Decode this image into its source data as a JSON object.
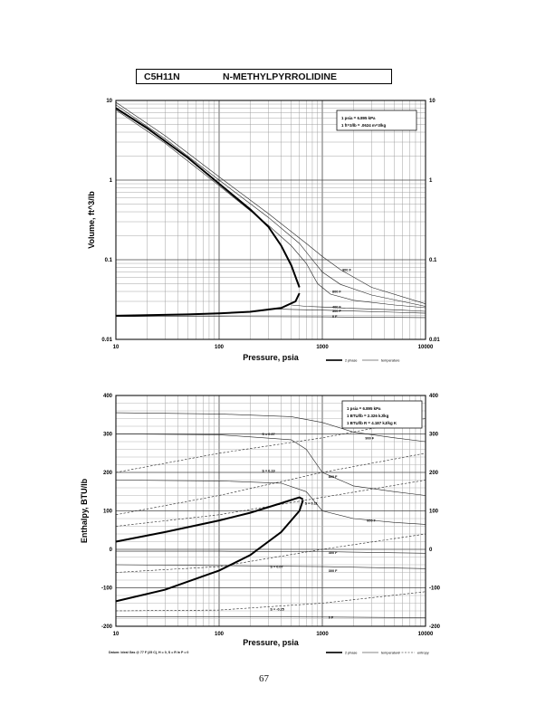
{
  "header": {
    "formula": "C5H11N",
    "name": "N-METHYLPYRROLIDINE"
  },
  "page_number": "67",
  "datum_note": "Datum: Ideal Gas @ 77 F (25 C), H = 0, S = R ln P = 0",
  "chart_data": [
    {
      "type": "line",
      "scale": {
        "x": "log",
        "y": "log"
      },
      "xlabel": "Pressure,  psia",
      "ylabel": "Volume, ft^3/lb",
      "xlim": [
        10,
        10000
      ],
      "ylim": [
        0.01,
        10
      ],
      "x_ticks": [
        "10",
        "100",
        "1000",
        "10000"
      ],
      "y_ticks": [
        "10",
        "1",
        "0.1",
        "0.01"
      ],
      "y_ticks_right": [
        "10",
        "1",
        "0.1",
        "0.01"
      ],
      "conversion_box": [
        "1 psia = 6.895 kPa",
        "1 ft^3/lb = .0624 m^3/kg"
      ],
      "legend": [
        {
          "label": "2 phase",
          "style": "thick"
        },
        {
          "label": "temperature",
          "style": "thin"
        }
      ],
      "two_phase": {
        "liquid": {
          "x": [
            10,
            20,
            50,
            100,
            200,
            400,
            550,
            600
          ],
          "y": [
            0.0198,
            0.0201,
            0.0206,
            0.0212,
            0.0222,
            0.0248,
            0.03,
            0.038
          ]
        },
        "vapor": {
          "x": [
            10,
            20,
            50,
            100,
            200,
            300,
            400,
            500,
            600
          ],
          "y": [
            8,
            4.5,
            1.9,
            0.9,
            0.43,
            0.26,
            0.15,
            0.085,
            0.045
          ]
        }
      },
      "series": [
        {
          "name": "900 F",
          "x": [
            10,
            30,
            100,
            300,
            700,
            1000,
            1500,
            3000,
            10000
          ],
          "y": [
            9.5,
            3.6,
            1.1,
            0.38,
            0.16,
            0.11,
            0.075,
            0.045,
            0.028
          ]
        },
        {
          "name": "800 F",
          "x": [
            10,
            30,
            100,
            300,
            600,
            800,
            1000,
            1500,
            3000,
            10000
          ],
          "y": [
            8.8,
            3.3,
            1.0,
            0.34,
            0.16,
            0.1,
            0.07,
            0.049,
            0.036,
            0.026
          ]
        },
        {
          "name": "600 F",
          "x": [
            10,
            30,
            100,
            300,
            500,
            700,
            900,
            1200,
            2000,
            5000,
            10000
          ],
          "y": [
            7.6,
            2.9,
            0.85,
            0.27,
            0.15,
            0.09,
            0.05,
            0.037,
            0.031,
            0.027,
            0.025
          ]
        },
        {
          "name": "400 F",
          "x": [
            500,
            700,
            1000,
            2000,
            5000,
            10000
          ],
          "y": [
            0.027,
            0.026,
            0.0255,
            0.0245,
            0.0235,
            0.0225
          ]
        },
        {
          "name": "300 F",
          "x": [
            300,
            500,
            1000,
            2000,
            5000,
            10000
          ],
          "y": [
            0.0242,
            0.0238,
            0.0233,
            0.0227,
            0.0219,
            0.0213
          ]
        },
        {
          "name": "0 F",
          "x": [
            10,
            100,
            1000,
            10000
          ],
          "y": [
            0.0194,
            0.0194,
            0.0192,
            0.0188
          ]
        }
      ],
      "annotations": [
        {
          "text": "900 F",
          "x": 1500,
          "y": 0.075
        },
        {
          "text": "800 F",
          "x": 1200,
          "y": 0.04
        },
        {
          "text": "400 F",
          "x": 1200,
          "y": 0.0255
        },
        {
          "text": "300 F",
          "x": 1200,
          "y": 0.0227
        },
        {
          "text": "0 F",
          "x": 1200,
          "y": 0.0195
        }
      ]
    },
    {
      "type": "line",
      "scale": {
        "x": "log",
        "y": "linear"
      },
      "xlabel": "Pressure,  psia",
      "ylabel": "Enthalpy, BTU/lb",
      "xlim": [
        10,
        10000
      ],
      "ylim": [
        -200,
        400
      ],
      "x_ticks": [
        "10",
        "100",
        "1000",
        "10000"
      ],
      "y_ticks": [
        "400",
        "300",
        "200",
        "100",
        "0",
        "-100",
        "-200"
      ],
      "y_ticks_right": [
        "400",
        "300",
        "200",
        "100",
        "0",
        "-100",
        "-200"
      ],
      "conversion_box": [
        "1 psia = 6.895 kPa",
        "1 BTU/lb = 2.326 kJ/kg",
        "1 BTU/lb R = 4.187 kJ/kg K"
      ],
      "legend": [
        {
          "label": "2 phase",
          "style": "thick"
        },
        {
          "label": "temperature",
          "style": "thin"
        },
        {
          "label": "entropy",
          "style": "dashed"
        }
      ],
      "two_phase": {
        "liquid": {
          "x": [
            10,
            30,
            100,
            200,
            400,
            600,
            650
          ],
          "y": [
            -135,
            -105,
            -55,
            -15,
            45,
            100,
            128
          ]
        },
        "vapor": {
          "x": [
            10,
            30,
            100,
            200,
            400,
            600,
            650
          ],
          "y": [
            20,
            45,
            75,
            95,
            120,
            135,
            130
          ]
        }
      },
      "series": [
        {
          "name": "900 F",
          "x": [
            10,
            100,
            500,
            1000,
            2000,
            5000,
            10000
          ],
          "y": [
            355,
            352,
            345,
            330,
            305,
            290,
            280
          ]
        },
        {
          "name": "800 F",
          "x": [
            10,
            100,
            500,
            700,
            1000,
            2000,
            5000,
            10000
          ],
          "y": [
            300,
            298,
            285,
            260,
            200,
            165,
            150,
            140
          ]
        },
        {
          "name": "600 F",
          "x": [
            10,
            100,
            400,
            700,
            1000,
            2000,
            5000,
            10000
          ],
          "y": [
            180,
            178,
            172,
            150,
            100,
            80,
            70,
            65
          ]
        },
        {
          "name": "400 F",
          "x": [
            10,
            100,
            1000,
            10000
          ],
          "y": [
            -5,
            -5,
            -6,
            -10
          ]
        },
        {
          "name": "300 F",
          "x": [
            10,
            100,
            1000,
            10000
          ],
          "y": [
            -40,
            -42,
            -45,
            -50
          ]
        },
        {
          "name": "0 F",
          "x": [
            10,
            100,
            1000,
            10000
          ],
          "y": [
            -175,
            -175,
            -176,
            -178
          ]
        },
        {
          "name": "S = 0.37",
          "x": [
            10,
            100,
            1000,
            10000
          ],
          "y": [
            200,
            250,
            290,
            340
          ]
        },
        {
          "name": "S = 0.19",
          "x": [
            10,
            100,
            1000,
            10000
          ],
          "y": [
            90,
            140,
            200,
            250
          ]
        },
        {
          "name": "S = 0.11",
          "x": [
            10,
            100,
            1000,
            10000
          ],
          "y": [
            60,
            90,
            135,
            180
          ]
        },
        {
          "name": "S = 0.07",
          "x": [
            10,
            100,
            1000,
            10000
          ],
          "y": [
            -60,
            -45,
            0,
            40
          ]
        },
        {
          "name": "S = -0.25",
          "x": [
            10,
            100,
            1000,
            10000
          ],
          "y": [
            -160,
            -158,
            -140,
            -110
          ]
        }
      ],
      "annotations": [
        {
          "text": "900 F",
          "x": 2500,
          "y": 290
        },
        {
          "text": "800 F",
          "x": 1100,
          "y": 190
        },
        {
          "text": "600 F",
          "x": 2600,
          "y": 75
        },
        {
          "text": "400 F",
          "x": 1100,
          "y": -8
        },
        {
          "text": "300 F",
          "x": 1100,
          "y": -55
        },
        {
          "text": "0 F",
          "x": 1100,
          "y": -176
        },
        {
          "text": "S = 0.37",
          "x": 250,
          "y": 300
        },
        {
          "text": "S = 0.19",
          "x": 250,
          "y": 205
        },
        {
          "text": "S = 0.11",
          "x": 650,
          "y": 120
        },
        {
          "text": "S = 0.07",
          "x": 300,
          "y": -45
        },
        {
          "text": "S = -0.25",
          "x": 300,
          "y": -155
        }
      ]
    }
  ]
}
